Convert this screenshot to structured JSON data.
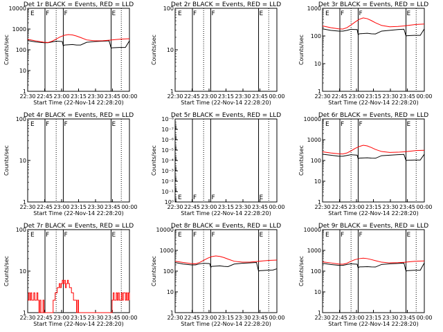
{
  "figure": {
    "ylabel": "Counts/sec",
    "xlabel": "Start Time (22-Nov-14 22:28:20)",
    "xticks": [
      "22:30",
      "22:45",
      "23:00",
      "23:15",
      "23:30",
      "23:45",
      "00:00"
    ],
    "colors": {
      "events": "#000000",
      "lld": "#ff0000",
      "axes": "#000000"
    },
    "legend_note": "BLACK = Events, RED = LLD"
  },
  "chart_data": [
    {
      "type": "line",
      "title": "Det 1r BLACK = Events, RED = LLD",
      "yscale": "log",
      "ylim": [
        1,
        10000
      ],
      "yticks": [
        "1",
        "10",
        "100",
        "1000",
        "10000"
      ],
      "xlim": [
        0,
        100
      ],
      "markers": [
        [
          "E",
          2
        ],
        [
          "F",
          17
        ],
        [
          "F",
          35
        ],
        [
          "E",
          82
        ]
      ],
      "solid_lines": [
        17,
        35,
        82
      ],
      "dotted_lines": [
        28,
        92
      ],
      "series": [
        {
          "name": "Events",
          "color": "#000000",
          "x": [
            0,
            8,
            16,
            20,
            24,
            28,
            31,
            34,
            35,
            36,
            40,
            44,
            48,
            52,
            58,
            66,
            74,
            80,
            82,
            83,
            90,
            96,
            100
          ],
          "y": [
            280,
            240,
            220,
            220,
            240,
            260,
            255,
            250,
            150,
            170,
            175,
            180,
            170,
            170,
            230,
            250,
            260,
            270,
            120,
            125,
            130,
            130,
            270
          ]
        },
        {
          "name": "LLD",
          "color": "#ff0000",
          "x": [
            0,
            8,
            16,
            20,
            24,
            28,
            32,
            36,
            40,
            44,
            48,
            52,
            58,
            66,
            74,
            80,
            86,
            92,
            100
          ],
          "y": [
            320,
            270,
            230,
            225,
            260,
            330,
            420,
            500,
            540,
            520,
            460,
            390,
            300,
            270,
            275,
            290,
            310,
            330,
            340
          ]
        }
      ]
    },
    {
      "type": "line",
      "title": "Det 2r BLACK = Events, RED = LLD",
      "yscale": "log",
      "ylim": [
        1,
        100
      ],
      "yticks": [
        "1",
        "10",
        "100"
      ],
      "xlim": [
        0,
        100
      ],
      "markers": [
        [
          "E",
          2
        ],
        [
          "F",
          17
        ],
        [
          "F",
          35
        ],
        [
          "E",
          82
        ]
      ],
      "solid_lines": [
        17,
        35,
        82
      ],
      "dotted_lines": [
        28,
        92
      ],
      "series": []
    },
    {
      "type": "line",
      "title": "Det 3r BLACK = Events, RED = LLD",
      "yscale": "log",
      "ylim": [
        1,
        1000
      ],
      "yticks": [
        "1",
        "10",
        "100",
        "1000"
      ],
      "xlim": [
        0,
        100
      ],
      "markers": [
        [
          "E",
          2
        ],
        [
          "F",
          17
        ],
        [
          "F",
          35
        ],
        [
          "E",
          82
        ]
      ],
      "solid_lines": [
        17,
        35,
        82
      ],
      "dotted_lines": [
        28,
        92
      ],
      "series": [
        {
          "name": "Events",
          "color": "#000000",
          "x": [
            0,
            8,
            16,
            20,
            24,
            28,
            31,
            34,
            35,
            36,
            40,
            44,
            48,
            52,
            58,
            66,
            74,
            80,
            82,
            83,
            90,
            96,
            100
          ],
          "y": [
            180,
            160,
            150,
            150,
            160,
            175,
            172,
            170,
            110,
            120,
            122,
            125,
            120,
            118,
            150,
            160,
            170,
            175,
            100,
            102,
            105,
            105,
            180
          ]
        },
        {
          "name": "LLD",
          "color": "#ff0000",
          "x": [
            0,
            8,
            16,
            20,
            24,
            28,
            32,
            36,
            40,
            44,
            48,
            52,
            58,
            66,
            74,
            80,
            86,
            92,
            100
          ],
          "y": [
            230,
            200,
            180,
            178,
            200,
            250,
            320,
            400,
            450,
            420,
            360,
            300,
            240,
            215,
            220,
            230,
            245,
            260,
            270
          ]
        }
      ]
    },
    {
      "type": "line",
      "title": "Det 4r BLACK = Events, RED = LLD",
      "yscale": "log",
      "ylim": [
        1,
        100
      ],
      "yticks": [
        "1",
        "10",
        "100"
      ],
      "xlim": [
        0,
        100
      ],
      "markers": [
        [
          "E",
          2
        ],
        [
          "F",
          17
        ],
        [
          "F",
          35
        ],
        [
          "E",
          82
        ]
      ],
      "solid_lines": [
        17,
        35,
        82
      ],
      "dotted_lines": [
        28,
        92
      ],
      "series": []
    },
    {
      "type": "line",
      "title": "Det 5r BLACK = Events, RED = LLD",
      "yscale": "log",
      "ylim": [
        1,
        1e-08
      ],
      "yticks": [
        "10⁰",
        "10⁻¹",
        "10⁻²",
        "10⁻³",
        "10⁻⁴",
        "10⁻⁵",
        "10⁻⁶",
        "10⁻⁷",
        "10⁻⁸"
      ],
      "xlim": [
        0,
        100
      ],
      "markers": [
        [
          "E",
          2
        ],
        [
          "F",
          17
        ],
        [
          "F",
          35
        ],
        [
          "E",
          82
        ]
      ],
      "markers_position": "bottom",
      "solid_lines": [
        17,
        35,
        82
      ],
      "dotted_lines": [
        28,
        92
      ],
      "series": []
    },
    {
      "type": "line",
      "title": "Det 6r BLACK = Events, RED = LLD",
      "yscale": "log",
      "ylim": [
        1,
        10000
      ],
      "yticks": [
        "1",
        "10",
        "100",
        "1000",
        "10000"
      ],
      "xlim": [
        0,
        100
      ],
      "markers": [
        [
          "E",
          2
        ],
        [
          "F",
          17
        ],
        [
          "F",
          35
        ],
        [
          "E",
          82
        ]
      ],
      "solid_lines": [
        17,
        35,
        82
      ],
      "dotted_lines": [
        28,
        92
      ],
      "series": [
        {
          "name": "Events",
          "color": "#000000",
          "x": [
            0,
            8,
            16,
            20,
            24,
            28,
            31,
            34,
            35,
            36,
            40,
            44,
            48,
            52,
            58,
            66,
            74,
            80,
            82,
            83,
            90,
            96,
            100
          ],
          "y": [
            200,
            180,
            160,
            160,
            175,
            190,
            185,
            180,
            120,
            130,
            132,
            135,
            130,
            128,
            170,
            180,
            190,
            195,
            100,
            102,
            105,
            105,
            200
          ]
        },
        {
          "name": "LLD",
          "color": "#ff0000",
          "x": [
            0,
            8,
            16,
            20,
            24,
            28,
            32,
            36,
            40,
            44,
            48,
            52,
            58,
            66,
            74,
            80,
            86,
            92,
            100
          ],
          "y": [
            260,
            230,
            210,
            205,
            230,
            290,
            380,
            470,
            540,
            500,
            420,
            340,
            270,
            245,
            250,
            260,
            280,
            300,
            310
          ]
        }
      ]
    },
    {
      "type": "line",
      "title": "Det 7r BLACK = Events, RED = LLD",
      "yscale": "log",
      "ylim": [
        1,
        100
      ],
      "yticks": [
        "1",
        "10",
        "100"
      ],
      "xlim": [
        0,
        100
      ],
      "markers": [
        [
          "E",
          2
        ],
        [
          "F",
          17
        ],
        [
          "F",
          35
        ],
        [
          "E",
          82
        ]
      ],
      "solid_lines": [
        17,
        35,
        82
      ],
      "dotted_lines": [
        28,
        92
      ],
      "series": [
        {
          "name": "LLD",
          "color": "#ff0000",
          "step": true,
          "x": [
            0,
            1,
            2,
            3,
            4,
            5,
            6,
            7,
            8,
            9,
            10,
            11,
            12,
            13,
            14,
            15,
            16,
            17,
            18,
            19,
            20,
            21,
            22,
            23,
            24,
            25,
            26,
            27,
            28,
            29,
            30,
            31,
            32,
            33,
            34,
            35,
            36,
            37,
            38,
            39,
            40,
            41,
            42,
            43,
            44,
            45,
            46,
            47,
            48,
            49,
            50,
            51,
            52,
            53,
            54,
            55,
            56,
            57,
            58,
            59,
            60,
            61,
            62,
            63,
            64,
            65,
            66,
            67,
            68,
            69,
            70,
            71,
            72,
            73,
            74,
            75,
            76,
            77,
            78,
            79,
            80,
            81,
            82,
            83,
            84,
            85,
            86,
            87,
            88,
            89,
            90,
            91,
            92,
            93,
            94,
            95,
            96,
            97,
            98,
            99,
            100
          ],
          "y": [
            2,
            3,
            2,
            3,
            2,
            2,
            3,
            2,
            2,
            3,
            2,
            1,
            2,
            1,
            1,
            2,
            1,
            1,
            1,
            1,
            1,
            1,
            1,
            1,
            1,
            2,
            2,
            3,
            3,
            4,
            4,
            5,
            4,
            5,
            6,
            5,
            6,
            4,
            5,
            6,
            5,
            4,
            4,
            3,
            3,
            2,
            2,
            2,
            1,
            2,
            1,
            1,
            1,
            1,
            1,
            1,
            1,
            1,
            1,
            1,
            1,
            1,
            1,
            1,
            1,
            1,
            1,
            1,
            1,
            1,
            1,
            1,
            1,
            1,
            1,
            1,
            1,
            1,
            1,
            1,
            1,
            1,
            1,
            2,
            3,
            2,
            2,
            3,
            2,
            3,
            2,
            2,
            3,
            2,
            3,
            3,
            2,
            3,
            2,
            3,
            2
          ]
        }
      ]
    },
    {
      "type": "line",
      "title": "Det 8r BLACK = Events, RED = LLD",
      "yscale": "log",
      "ylim": [
        1,
        10000
      ],
      "yticks": [
        "1",
        "10",
        "100",
        "1000",
        "10000"
      ],
      "xlim": [
        0,
        100
      ],
      "markers": [
        [
          "E",
          2
        ],
        [
          "F",
          17
        ],
        [
          "F",
          35
        ],
        [
          "E",
          82
        ]
      ],
      "solid_lines": [
        17,
        35,
        82
      ],
      "dotted_lines": [
        28,
        92
      ],
      "series": [
        {
          "name": "Events",
          "color": "#000000",
          "x": [
            0,
            8,
            16,
            20,
            24,
            28,
            31,
            34,
            35,
            36,
            40,
            44,
            48,
            52,
            58,
            66,
            74,
            80,
            82,
            83,
            90,
            96,
            100
          ],
          "y": [
            260,
            220,
            200,
            200,
            225,
            240,
            235,
            230,
            150,
            170,
            175,
            180,
            170,
            165,
            220,
            240,
            250,
            260,
            100,
            105,
            110,
            112,
            130
          ]
        },
        {
          "name": "LLD",
          "color": "#ff0000",
          "x": [
            0,
            8,
            16,
            20,
            24,
            28,
            32,
            36,
            40,
            44,
            48,
            52,
            58,
            66,
            74,
            80,
            86,
            92,
            100
          ],
          "y": [
            300,
            260,
            230,
            225,
            260,
            330,
            420,
            500,
            540,
            510,
            450,
            380,
            300,
            270,
            275,
            290,
            310,
            330,
            340
          ]
        }
      ]
    },
    {
      "type": "line",
      "title": "Det 9r BLACK = Events, RED = LLD",
      "yscale": "log",
      "ylim": [
        1,
        10000
      ],
      "yticks": [
        "1",
        "10",
        "100",
        "1000",
        "10000"
      ],
      "xlim": [
        0,
        100
      ],
      "markers": [
        [
          "E",
          2
        ],
        [
          "F",
          17
        ],
        [
          "F",
          35
        ],
        [
          "E",
          82
        ]
      ],
      "solid_lines": [
        17,
        35,
        82
      ],
      "dotted_lines": [
        28,
        92
      ],
      "series": [
        {
          "name": "Events",
          "color": "#000000",
          "x": [
            0,
            8,
            16,
            20,
            24,
            28,
            31,
            34,
            35,
            36,
            40,
            44,
            48,
            52,
            58,
            66,
            74,
            80,
            82,
            83,
            90,
            96,
            100
          ],
          "y": [
            240,
            210,
            190,
            190,
            210,
            225,
            220,
            215,
            140,
            160,
            162,
            165,
            160,
            158,
            210,
            225,
            235,
            245,
            100,
            105,
            110,
            110,
            250
          ]
        },
        {
          "name": "LLD",
          "color": "#ff0000",
          "x": [
            0,
            8,
            16,
            20,
            24,
            28,
            32,
            36,
            40,
            44,
            48,
            52,
            58,
            66,
            74,
            80,
            86,
            92,
            100
          ],
          "y": [
            280,
            250,
            220,
            215,
            240,
            300,
            360,
            400,
            420,
            400,
            360,
            320,
            270,
            250,
            255,
            265,
            285,
            300,
            310
          ]
        }
      ]
    }
  ]
}
